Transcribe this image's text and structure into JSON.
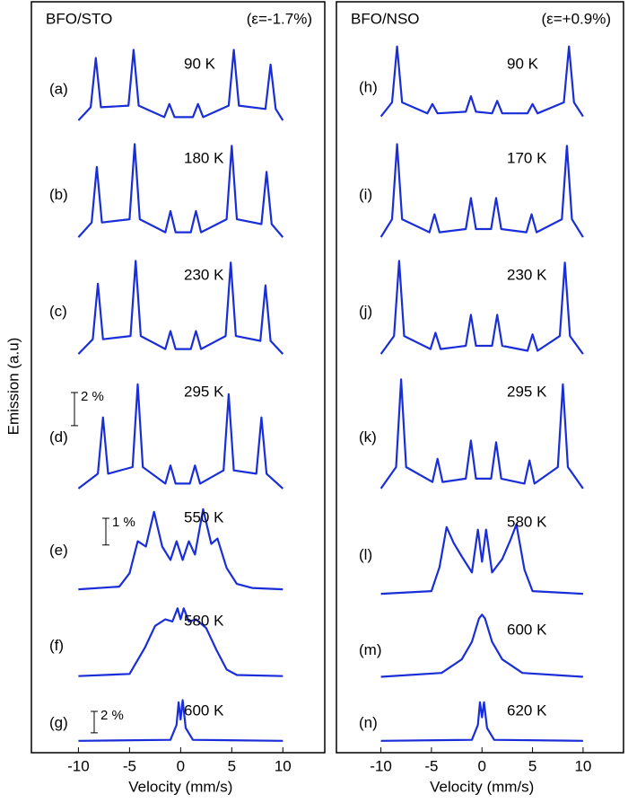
{
  "figure": {
    "ylabel": "Emission (a.u)",
    "xlabel": "Velocity (mm/s)"
  },
  "chart_data": [
    {
      "type": "line",
      "title": "BFO/STO",
      "subtitle": "(ε=-1.7%)",
      "color": "#1a2ed8",
      "xlim": [
        -14.6,
        14.1
      ],
      "xticks": [
        -10,
        -5,
        0,
        5,
        10
      ],
      "panels": [
        {
          "label": "(a)",
          "temperature": "90 K",
          "ylim": [
            -0.6,
            4.6
          ],
          "x": [
            -10,
            -8.8,
            -8.3,
            -7.8,
            -5.1,
            -4.6,
            -4.1,
            -1.6,
            -1.1,
            -0.6,
            1.2,
            1.7,
            2.2,
            4.7,
            5.2,
            5.7,
            8.3,
            8.8,
            9.3,
            10
          ],
          "values": [
            0,
            0.8,
            3.8,
            0.8,
            0.9,
            4.3,
            0.9,
            0.2,
            1.0,
            0.2,
            0.2,
            1.0,
            0.2,
            0.9,
            4.3,
            0.9,
            0.7,
            3.4,
            0.7,
            0
          ]
        },
        {
          "label": "(b)",
          "temperature": "180 K",
          "ylim": [
            -0.6,
            6
          ],
          "x": [
            -10,
            -8.7,
            -8.2,
            -7.7,
            -5.0,
            -4.5,
            -4.0,
            -1.5,
            -1.0,
            -0.5,
            1.0,
            1.5,
            2.0,
            4.5,
            5.0,
            5.5,
            7.9,
            8.4,
            8.9,
            10
          ],
          "values": [
            0,
            0.9,
            4.3,
            0.9,
            1.1,
            5.7,
            1.1,
            0.3,
            1.6,
            0.3,
            0.3,
            1.6,
            0.3,
            1.1,
            5.6,
            1.1,
            0.8,
            4.0,
            0.8,
            0
          ]
        },
        {
          "label": "(c)",
          "temperature": "230 K",
          "ylim": [
            -0.6,
            6
          ],
          "x": [
            -10,
            -8.6,
            -8.1,
            -7.6,
            -4.9,
            -4.4,
            -3.9,
            -1.5,
            -1.0,
            -0.5,
            1.0,
            1.5,
            2.0,
            4.4,
            4.9,
            5.4,
            7.8,
            8.3,
            8.8,
            10
          ],
          "values": [
            0,
            0.9,
            4.3,
            0.9,
            1.1,
            5.7,
            1.1,
            0.3,
            1.4,
            0.3,
            0.3,
            1.4,
            0.3,
            1.1,
            5.6,
            1.1,
            0.8,
            4.2,
            0.8,
            0
          ]
        },
        {
          "label": "(d)",
          "temperature": "295 K",
          "ylim": [
            -0.6,
            7
          ],
          "scale_bar": {
            "value": 2,
            "label": "2 %"
          },
          "x": [
            -10,
            -8.1,
            -7.6,
            -7.1,
            -4.7,
            -4.2,
            -3.7,
            -1.5,
            -1.0,
            -0.5,
            0.9,
            1.4,
            1.9,
            4.2,
            4.7,
            5.2,
            7.4,
            7.9,
            8.4,
            10
          ],
          "values": [
            0,
            0.9,
            4.3,
            0.9,
            1.3,
            6.3,
            1.3,
            0.3,
            1.4,
            0.3,
            0.3,
            1.4,
            0.3,
            1.1,
            5.7,
            1.1,
            0.9,
            4.3,
            0.9,
            0
          ]
        },
        {
          "label": "(e)",
          "temperature": "550 K",
          "ylim": [
            -0.3,
            3.4
          ],
          "scale_bar": {
            "value": 1,
            "label": "1 %"
          },
          "x": [
            -10,
            -6,
            -5,
            -4.2,
            -3.4,
            -2.6,
            -1.8,
            -1,
            -0.4,
            0.2,
            0.8,
            1.4,
            2.2,
            3.0,
            3.6,
            4.5,
            5.5,
            7,
            10
          ],
          "values": [
            0,
            0.1,
            0.6,
            1.8,
            1.6,
            2.9,
            1.6,
            1.1,
            1.8,
            1.1,
            1.8,
            1.3,
            3.0,
            1.7,
            1.9,
            0.8,
            0.2,
            0.05,
            0
          ]
        },
        {
          "label": "(f)",
          "temperature": "580 K",
          "ylim": [
            -0.3,
            3.4
          ],
          "x": [
            -10,
            -5,
            -3.5,
            -2.5,
            -1.5,
            -0.8,
            -0.3,
            0,
            0.3,
            0.8,
            1.5,
            2.5,
            3.5,
            4.5,
            5.5,
            10
          ],
          "values": [
            0,
            0.1,
            1.3,
            2.3,
            2.6,
            2.5,
            3.1,
            2.6,
            3.1,
            2.5,
            2.6,
            2.2,
            1.2,
            0.3,
            0.05,
            0
          ]
        },
        {
          "label": "(g)",
          "temperature": "600 K",
          "ylim": [
            -0.6,
            4.6
          ],
          "scale_bar": {
            "value": 2,
            "label": "2 %"
          },
          "x": [
            -10,
            -1,
            -0.4,
            -0.2,
            0,
            0.2,
            0.5,
            1.2,
            10
          ],
          "values": [
            0,
            0.1,
            1.5,
            3.6,
            2.0,
            3.8,
            1.2,
            0.1,
            0
          ]
        }
      ]
    },
    {
      "type": "line",
      "title": "BFO/NSO",
      "subtitle": "(ε=+0.9%)",
      "color": "#1a2ed8",
      "xlim": [
        -14.4,
        14
      ],
      "xticks": [
        -10,
        -5,
        0,
        5,
        10
      ],
      "panels": [
        {
          "label": "(h)",
          "temperature": "90 K",
          "ylim": [
            -0.6,
            4.6
          ],
          "x": [
            -10,
            -8.9,
            -8.4,
            -7.9,
            -5.4,
            -4.9,
            -4.4,
            -1.6,
            -1.1,
            -0.6,
            1.0,
            1.5,
            2.0,
            4.5,
            5.0,
            5.5,
            8.1,
            8.6,
            9.1,
            10
          ],
          "values": [
            0,
            0.9,
            4.5,
            0.9,
            0.2,
            0.8,
            0.2,
            0.3,
            1.3,
            0.3,
            0.2,
            1.0,
            0.2,
            0.2,
            0.8,
            0.2,
            0.9,
            4.5,
            0.9,
            0
          ]
        },
        {
          "label": "(i)",
          "temperature": "170 K",
          "ylim": [
            -0.6,
            6
          ],
          "x": [
            -10,
            -8.9,
            -8.4,
            -7.9,
            -5.2,
            -4.7,
            -4.2,
            -1.6,
            -1.1,
            -0.6,
            0.9,
            1.4,
            1.9,
            4.4,
            4.9,
            5.4,
            7.9,
            8.4,
            8.9,
            10
          ],
          "values": [
            0,
            1.1,
            5.7,
            1.1,
            0.3,
            1.4,
            0.3,
            0.5,
            2.4,
            0.5,
            0.5,
            2.4,
            0.5,
            0.3,
            1.4,
            0.3,
            1.1,
            5.6,
            1.1,
            0
          ]
        },
        {
          "label": "(j)",
          "temperature": "230 K",
          "ylim": [
            -0.6,
            6
          ],
          "x": [
            -10,
            -8.7,
            -8.2,
            -7.7,
            -5.1,
            -4.6,
            -4.1,
            -1.6,
            -1.1,
            -0.6,
            1.0,
            1.5,
            2.0,
            4.5,
            5.0,
            5.5,
            7.7,
            8.2,
            8.7,
            10
          ],
          "values": [
            0,
            1.1,
            5.7,
            1.1,
            0.3,
            1.3,
            0.3,
            0.5,
            2.4,
            0.5,
            0.5,
            2.4,
            0.5,
            0.2,
            1.2,
            0.2,
            1.1,
            5.6,
            1.1,
            0
          ]
        },
        {
          "label": "(k)",
          "temperature": "295 K",
          "ylim": [
            -0.6,
            7
          ],
          "x": [
            -10,
            -8.5,
            -8.0,
            -7.5,
            -4.9,
            -4.4,
            -3.9,
            -1.6,
            -1.1,
            -0.6,
            0.9,
            1.4,
            1.9,
            4.2,
            4.7,
            5.2,
            7.5,
            8.0,
            8.5,
            10
          ],
          "values": [
            0,
            1.3,
            6.6,
            1.3,
            0.4,
            1.8,
            0.4,
            0.6,
            2.9,
            0.6,
            0.6,
            2.8,
            0.6,
            0.3,
            1.7,
            0.3,
            1.3,
            6.3,
            1.3,
            0
          ]
        },
        {
          "label": "(l)",
          "temperature": "580 K",
          "ylim": [
            -0.3,
            3.4
          ],
          "x": [
            -10,
            -5,
            -4.2,
            -3.5,
            -2.8,
            -2,
            -1,
            -0.4,
            0,
            0.4,
            1,
            2,
            2.8,
            3.4,
            4.2,
            5,
            10
          ],
          "values": [
            0,
            0.1,
            1.0,
            2.5,
            1.9,
            1.4,
            0.8,
            2.4,
            1.2,
            2.4,
            0.8,
            1.3,
            2.0,
            2.6,
            0.9,
            0.1,
            0
          ]
        },
        {
          "label": "(m)",
          "temperature": "600 K",
          "ylim": [
            -0.3,
            3.4
          ],
          "x": [
            -10,
            -4,
            -2,
            -1,
            -0.3,
            0,
            0.3,
            1,
            2,
            4,
            10
          ],
          "values": [
            0,
            0.2,
            0.9,
            1.8,
            3.0,
            3.2,
            3.0,
            1.8,
            0.9,
            0.2,
            0
          ]
        },
        {
          "label": "(n)",
          "temperature": "620 K",
          "ylim": [
            -0.6,
            4.6
          ],
          "x": [
            -10,
            -1,
            -0.4,
            -0.2,
            0,
            0.2,
            0.5,
            1.2,
            10
          ],
          "values": [
            0,
            0.1,
            1.5,
            3.6,
            2.2,
            3.6,
            1.2,
            0.1,
            0
          ]
        }
      ]
    }
  ]
}
